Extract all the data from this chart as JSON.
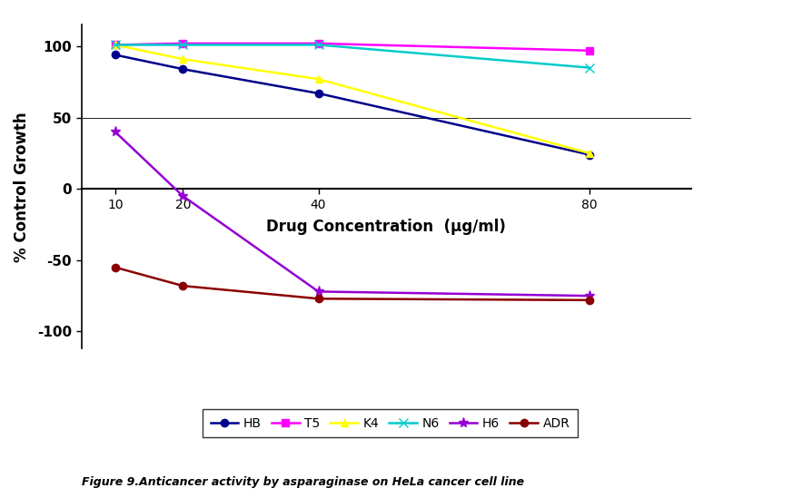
{
  "x": [
    10,
    20,
    40,
    80
  ],
  "series": {
    "HB": {
      "values": [
        94,
        84,
        67,
        24
      ],
      "color": "#00008B",
      "marker": "o",
      "markersize": 6
    },
    "T5": {
      "values": [
        101,
        102,
        102,
        97
      ],
      "color": "#FF00FF",
      "marker": "s",
      "markersize": 6
    },
    "K4": {
      "values": [
        101,
        91,
        77,
        25
      ],
      "color": "#FFFF00",
      "marker": "^",
      "markersize": 6
    },
    "N6": {
      "values": [
        101,
        101,
        101,
        85
      ],
      "color": "#00CCCC",
      "marker": "x",
      "markersize": 7
    },
    "H6": {
      "values": [
        40,
        -5,
        -72,
        -75
      ],
      "color": "#9400D3",
      "marker": "*",
      "markersize": 8
    },
    "ADR": {
      "values": [
        -55,
        -68,
        -77,
        -78
      ],
      "color": "#8B0000",
      "marker": "o",
      "markersize": 6
    }
  },
  "xlabel": "Drug Concentration  (μg/ml)",
  "ylabel": "% Control Growth",
  "xticks": [
    10,
    20,
    40,
    80
  ],
  "yticks": [
    -100,
    -50,
    0,
    50,
    100
  ],
  "ylim": [
    -112,
    115
  ],
  "xlim": [
    5,
    95
  ],
  "caption": "Figure 9.Anticancer activity by asparaginase on HeLa cancer cell line",
  "legend_order": [
    "HB",
    "T5",
    "K4",
    "N6",
    "H6",
    "ADR"
  ]
}
